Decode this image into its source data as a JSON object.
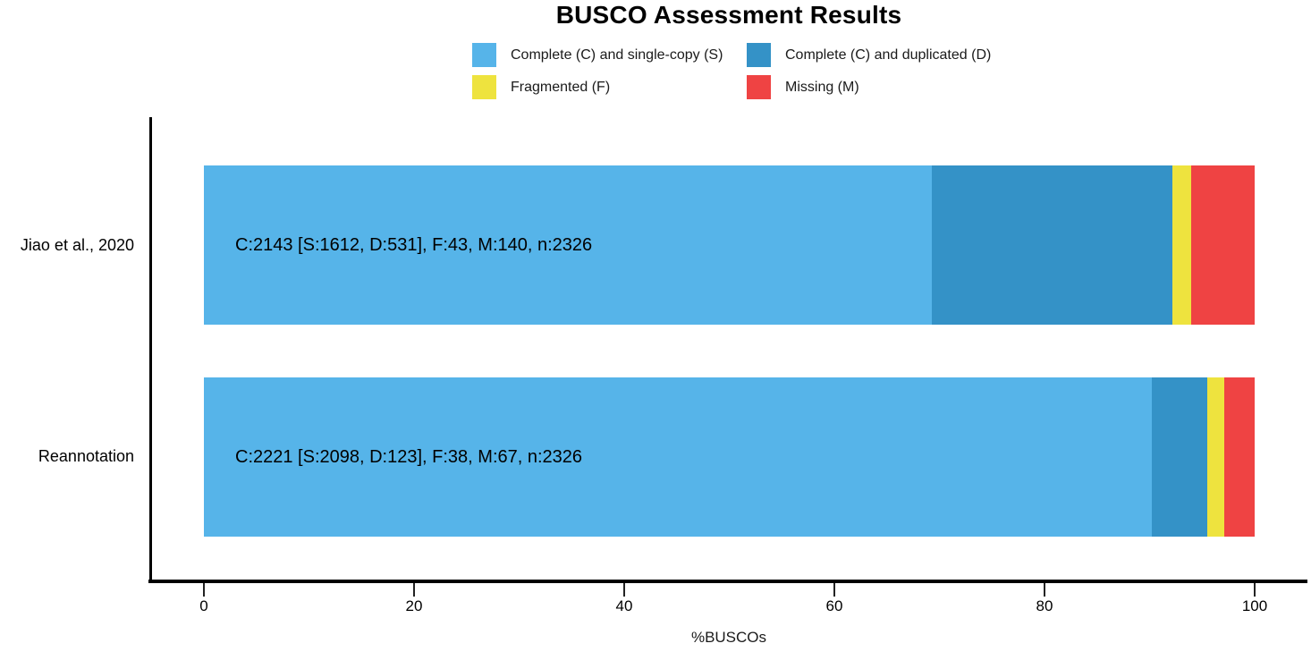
{
  "title": "BUSCO Assessment Results",
  "legend": {
    "items": [
      {
        "key": "complete-single-copy",
        "label": "Complete (C) and single-copy (S)",
        "color": "#56B4E9"
      },
      {
        "key": "complete-duplicated",
        "label": "Complete (C) and duplicated (D)",
        "color": "#3492C7"
      },
      {
        "key": "fragmented",
        "label": "Fragmented (F)",
        "color": "#EEE33E"
      },
      {
        "key": "missing",
        "label": "Missing (M)",
        "color": "#EF4343"
      }
    ]
  },
  "x_axis": {
    "ticks": [
      "0",
      "20",
      "40",
      "60",
      "80",
      "100"
    ],
    "label": "%BUSCOs"
  },
  "chart_data": {
    "type": "bar",
    "orientation": "horizontal",
    "stacked": true,
    "title": "BUSCO Assessment Results",
    "xlabel": "%BUSCOs",
    "xlim": [
      0,
      100
    ],
    "grid": false,
    "legend_position": "top",
    "n_per_category": 2326,
    "categories": [
      "Jiao et al., 2020",
      "Reannotation"
    ],
    "series": [
      {
        "key": "complete-single-copy",
        "name": "Complete (C) and single-copy (S)",
        "color": "#56B4E9",
        "values": [
          1612,
          2098
        ]
      },
      {
        "key": "complete-duplicated",
        "name": "Complete (C) and duplicated (D)",
        "color": "#3492C7",
        "values": [
          531,
          123
        ]
      },
      {
        "key": "fragmented",
        "name": "Fragmented (F)",
        "color": "#EEE33E",
        "values": [
          43,
          38
        ]
      },
      {
        "key": "missing",
        "name": "Missing (M)",
        "color": "#EF4343",
        "values": [
          140,
          67
        ]
      }
    ],
    "bar_labels": [
      "C:2143 [S:1612, D:531], F:43, M:140, n:2326",
      "C:2221 [S:2098, D:123], F:38, M:67, n:2326"
    ]
  }
}
